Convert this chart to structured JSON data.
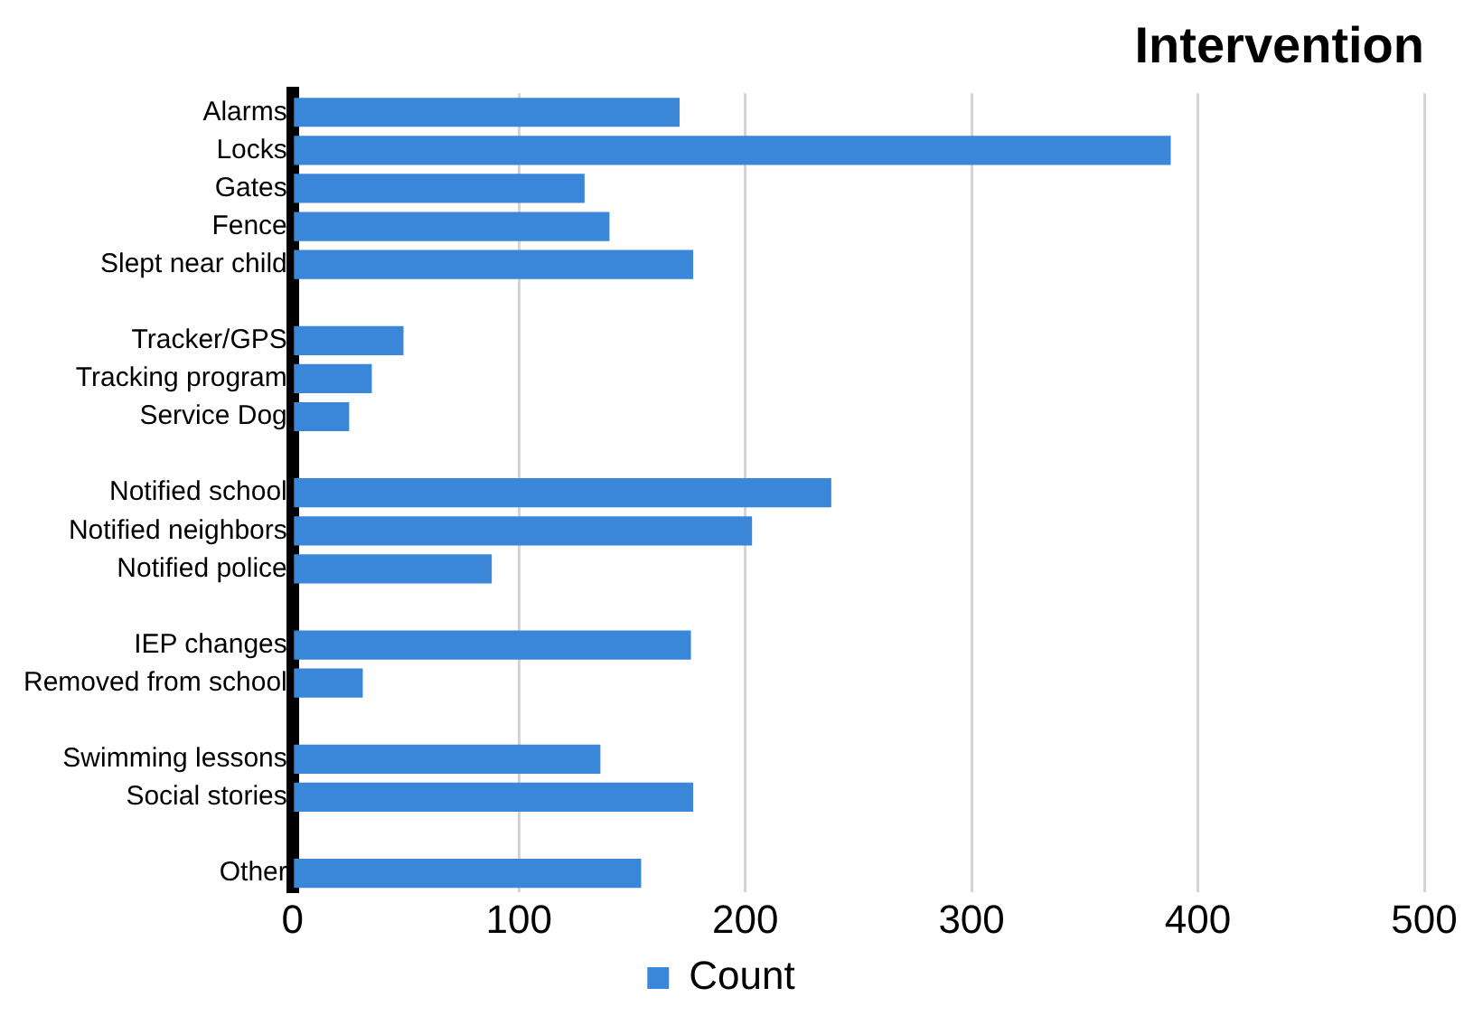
{
  "chart_data": {
    "type": "bar",
    "orientation": "horizontal",
    "title": "Intervention",
    "categories": [
      "Alarms",
      "Locks",
      "Gates",
      "Fence",
      "Slept near child",
      null,
      "Tracker/GPS",
      "Tracking program",
      "Service Dog",
      null,
      "Notified school",
      "Notified neighbors",
      "Notified police",
      null,
      "IEP changes",
      "Removed from school",
      null,
      "Swimming lessons",
      "Social stories",
      null,
      "Other"
    ],
    "series": [
      {
        "name": "Count",
        "color": "#3a86d9",
        "values": [
          171,
          388,
          129,
          140,
          177,
          null,
          49,
          35,
          25,
          null,
          238,
          203,
          88,
          null,
          176,
          31,
          null,
          136,
          177,
          null,
          154
        ]
      }
    ],
    "xlim": [
      0,
      500
    ],
    "xticks": [
      0,
      100,
      200,
      300,
      400,
      500
    ],
    "grid": "x",
    "legend": "bottom"
  }
}
